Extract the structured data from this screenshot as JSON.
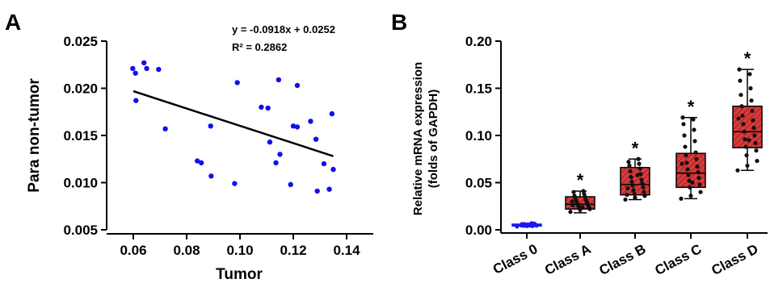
{
  "panels": {
    "a": "A",
    "b": "B"
  },
  "colors": {
    "point": "#1010ee",
    "box_red": "#d83a3a",
    "box_blue": "#1a1aee",
    "line": "#000000"
  },
  "chart_data": [
    {
      "type": "scatter",
      "panel": "A",
      "xlabel": "Tumor",
      "ylabel": "Para non-tumor",
      "xlim": [
        0.05,
        0.15
      ],
      "ylim": [
        0.005,
        0.025
      ],
      "xticks": [
        "0.06",
        "0.08",
        "0.10",
        "0.12",
        "0.14"
      ],
      "yticks": [
        "0.005",
        "0.010",
        "0.015",
        "0.020",
        "0.025"
      ],
      "equation": "y = -0.0918x + 0.0252",
      "r2": "R² = 0.2862",
      "trendline": {
        "slope": -0.0918,
        "intercept": 0.0252,
        "x_range": [
          0.06,
          0.135
        ]
      },
      "points": [
        [
          0.0598,
          0.0221
        ],
        [
          0.0608,
          0.0216
        ],
        [
          0.061,
          0.0187
        ],
        [
          0.064,
          0.0227
        ],
        [
          0.065,
          0.0221
        ],
        [
          0.0695,
          0.022
        ],
        [
          0.072,
          0.0157
        ],
        [
          0.084,
          0.0123
        ],
        [
          0.0855,
          0.0121
        ],
        [
          0.089,
          0.016
        ],
        [
          0.0892,
          0.0107
        ],
        [
          0.098,
          0.0099
        ],
        [
          0.099,
          0.0206
        ],
        [
          0.108,
          0.018
        ],
        [
          0.1105,
          0.0179
        ],
        [
          0.1112,
          0.0143
        ],
        [
          0.1135,
          0.0121
        ],
        [
          0.1145,
          0.0209
        ],
        [
          0.115,
          0.013
        ],
        [
          0.119,
          0.0098
        ],
        [
          0.12,
          0.016
        ],
        [
          0.1215,
          0.0159
        ],
        [
          0.1215,
          0.0203
        ],
        [
          0.1265,
          0.0165
        ],
        [
          0.1285,
          0.0146
        ],
        [
          0.129,
          0.0091
        ],
        [
          0.1315,
          0.012
        ],
        [
          0.1335,
          0.0093
        ],
        [
          0.1345,
          0.0173
        ],
        [
          0.135,
          0.0114
        ]
      ]
    },
    {
      "type": "box",
      "panel": "B",
      "ylabel_line1": "Relative mRNA expression",
      "ylabel_line2": "(folds of GAPDH)",
      "ylim": [
        0,
        0.2
      ],
      "yticks": [
        "0.00",
        "0.05",
        "0.10",
        "0.15",
        "0.20"
      ],
      "categories": [
        "Class 0",
        "Class A",
        "Class B",
        "Class C",
        "Class D"
      ],
      "significance": [
        "",
        "*",
        "*",
        "*",
        "*"
      ],
      "boxes": [
        {
          "min": 0.003,
          "q1": 0.004,
          "median": 0.005,
          "q3": 0.006,
          "max": 0.007,
          "points": [
            0.0035,
            0.004,
            0.0045,
            0.005,
            0.005,
            0.0055,
            0.006,
            0.006,
            0.0065,
            0.0045,
            0.0055,
            0.005,
            0.004,
            0.006,
            0.007
          ]
        },
        {
          "min": 0.018,
          "q1": 0.022,
          "median": 0.027,
          "q3": 0.035,
          "max": 0.041,
          "points": [
            0.019,
            0.021,
            0.022,
            0.023,
            0.024,
            0.025,
            0.026,
            0.027,
            0.028,
            0.029,
            0.03,
            0.031,
            0.032,
            0.034,
            0.035,
            0.036,
            0.038,
            0.04,
            0.041,
            0.026,
            0.024,
            0.03
          ]
        },
        {
          "min": 0.032,
          "q1": 0.037,
          "median": 0.048,
          "q3": 0.066,
          "max": 0.075,
          "points": [
            0.032,
            0.034,
            0.036,
            0.038,
            0.04,
            0.042,
            0.045,
            0.047,
            0.049,
            0.051,
            0.053,
            0.056,
            0.059,
            0.062,
            0.065,
            0.068,
            0.07,
            0.072,
            0.075,
            0.044,
            0.058,
            0.037
          ]
        },
        {
          "min": 0.033,
          "q1": 0.045,
          "median": 0.06,
          "q3": 0.081,
          "max": 0.119,
          "points": [
            0.033,
            0.036,
            0.04,
            0.045,
            0.048,
            0.052,
            0.055,
            0.058,
            0.061,
            0.064,
            0.067,
            0.071,
            0.075,
            0.079,
            0.082,
            0.088,
            0.094,
            0.1,
            0.106,
            0.112,
            0.117,
            0.119,
            0.05,
            0.07
          ]
        },
        {
          "min": 0.063,
          "q1": 0.087,
          "median": 0.104,
          "q3": 0.131,
          "max": 0.17,
          "points": [
            0.063,
            0.068,
            0.073,
            0.079,
            0.084,
            0.088,
            0.092,
            0.096,
            0.1,
            0.104,
            0.108,
            0.112,
            0.116,
            0.121,
            0.126,
            0.131,
            0.137,
            0.143,
            0.15,
            0.158,
            0.165,
            0.17,
            0.095,
            0.118
          ]
        }
      ]
    }
  ]
}
